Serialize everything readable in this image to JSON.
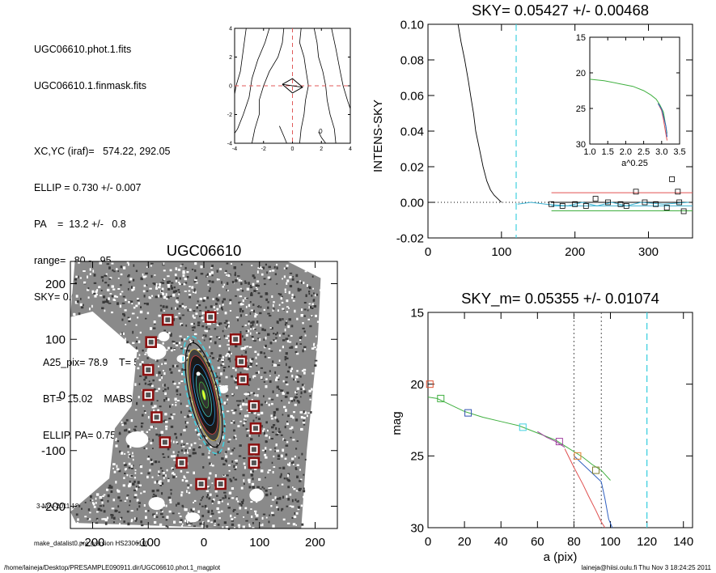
{
  "header_info": {
    "file_phot": "UGC06610.phot.1.fits",
    "file_mask": "UGC06610.1.finmask.fits",
    "xcyc": "XC,YC (iraf)=   574.22, 292.05",
    "ellip": "ELLIP = 0.730 +/- 0.007",
    "pa": "PA    =  13.2 +/-   0.8",
    "range": "range=   80.-   95.",
    "sky": "SKY= 0.05427 +/- 0.00468",
    "a25": "A25_pix= 78.9    T= 5.9  B",
    "bt": "BT=  15.02    MABS=-18.43",
    "ellip_pa": "ELLIP, PA= 0.758    12.0",
    "date": "3-Nov-2011 18:24:25.00",
    "program": "make_datalist0.pro (version HS230610)"
  },
  "footer": {
    "path": "/home/laineja/Desktop/PRESAMPLE090911.dir/UGC06610.phot.1_magplot",
    "user": "laineja@hiisi.oulu.fi  Thu Nov  3 18:24:25 2011"
  },
  "chart_data": [
    {
      "id": "contour",
      "type": "contour",
      "xlim": [
        -4,
        4
      ],
      "ylim": [
        -4,
        4
      ],
      "xticks": [
        "-4",
        "-2",
        "0",
        "2",
        "4"
      ],
      "yticks": [
        "-4",
        "-2",
        "0",
        "2",
        "4"
      ],
      "center": [
        0,
        0
      ],
      "crosshair_color": "#e05a5a"
    },
    {
      "id": "sky",
      "type": "line",
      "title": "SKY= 0.05427 +/- 0.00468",
      "ylabel": "INTENS-SKY",
      "xlim": [
        0,
        360
      ],
      "ylim": [
        -0.02,
        0.1
      ],
      "xticks": [
        "0",
        "100",
        "200",
        "300"
      ],
      "yticks": [
        "-0.02",
        "0.00",
        "0.02",
        "0.04",
        "0.06",
        "0.08",
        "0.10"
      ],
      "profile": [
        [
          41,
          0.1
        ],
        [
          45,
          0.09
        ],
        [
          50,
          0.08
        ],
        [
          55,
          0.068
        ],
        [
          58,
          0.06
        ],
        [
          62,
          0.05
        ],
        [
          65,
          0.04
        ],
        [
          70,
          0.03
        ],
        [
          75,
          0.02
        ],
        [
          80,
          0.012
        ],
        [
          85,
          0.007
        ],
        [
          90,
          0.004
        ],
        [
          95,
          0.002
        ],
        [
          100,
          0.0
        ]
      ],
      "cyan_line": 120,
      "boxes": [
        [
          168,
          -0.001
        ],
        [
          183,
          -0.002
        ],
        [
          200,
          -0.001
        ],
        [
          215,
          -0.002
        ],
        [
          228,
          0.002
        ],
        [
          245,
          0.0
        ],
        [
          262,
          -0.001
        ],
        [
          270,
          -0.002
        ],
        [
          283,
          0.006
        ],
        [
          295,
          0.0
        ],
        [
          310,
          -0.001
        ],
        [
          325,
          -0.003
        ],
        [
          332,
          0.013
        ],
        [
          340,
          0.006
        ],
        [
          342,
          0.0
        ],
        [
          348,
          -0.005
        ]
      ],
      "hlines": [
        {
          "y": 0.0054,
          "color": "#e05050"
        },
        {
          "y": 0.0,
          "color": "#000000"
        },
        {
          "y": -0.002,
          "color": "#3ab0d0"
        },
        {
          "y": -0.0048,
          "color": "#40b040"
        }
      ]
    },
    {
      "id": "sky_inset",
      "type": "line",
      "xlabel": "a^0.25",
      "xlim": [
        1.0,
        3.5
      ],
      "ylim": [
        30,
        15
      ],
      "xticks": [
        "1.0",
        "1.5",
        "2.0",
        "2.5",
        "3.0",
        "3.5"
      ],
      "yticks": [
        "15",
        "20",
        "25",
        "30"
      ],
      "series": [
        {
          "color": "#40b040",
          "x": [
            1.0,
            1.4,
            1.8,
            2.2,
            2.5,
            2.7,
            2.85,
            2.95,
            3.05,
            3.1,
            3.15
          ],
          "y": [
            20.9,
            21.1,
            21.5,
            21.9,
            22.5,
            23.1,
            23.7,
            24.5,
            25.5,
            27.0,
            28.5
          ]
        },
        {
          "color": "#e05050",
          "x": [
            2.9,
            3.0,
            3.05,
            3.1,
            3.15
          ],
          "y": [
            24.3,
            25.3,
            26.5,
            28.0,
            29.5
          ]
        },
        {
          "color": "#3060c0",
          "x": [
            2.9,
            3.0,
            3.06,
            3.12,
            3.15
          ],
          "y": [
            24.3,
            25.1,
            26.3,
            27.5,
            29.0
          ]
        }
      ]
    },
    {
      "id": "image",
      "type": "scatter",
      "title": "UGC06610",
      "xlim": [
        -240,
        240
      ],
      "ylim": [
        -240,
        240
      ],
      "xticks": [
        "-200",
        "-100",
        "0",
        "100",
        "200"
      ],
      "yticks": [
        "-200",
        "-100",
        "0",
        "100",
        "200"
      ],
      "galaxy": {
        "center": [
          0,
          0
        ],
        "a": 80,
        "ellip": 0.73,
        "pa": 13
      },
      "markers": [
        [
          -65,
          135
        ],
        [
          12,
          140
        ],
        [
          -95,
          95
        ],
        [
          57,
          100
        ],
        [
          -100,
          45
        ],
        [
          67,
          60
        ],
        [
          -100,
          0
        ],
        [
          70,
          28
        ],
        [
          -85,
          -40
        ],
        [
          90,
          -20
        ],
        [
          -70,
          -85
        ],
        [
          93,
          -60
        ],
        [
          -40,
          -122
        ],
        [
          90,
          -98
        ],
        [
          -5,
          -160
        ],
        [
          90,
          -122
        ],
        [
          30,
          -160
        ]
      ]
    },
    {
      "id": "mag",
      "type": "line",
      "title": "SKY_m=  0.05355 +/- 0.01074",
      "xlabel": "a (pix)",
      "ylabel": "mag",
      "xlim": [
        0,
        145
      ],
      "ylim": [
        30,
        15
      ],
      "xticks": [
        "0",
        "20",
        "40",
        "60",
        "80",
        "100",
        "120",
        "140"
      ],
      "yticks": [
        "15",
        "20",
        "25",
        "30"
      ],
      "vlines": [
        {
          "x": 80,
          "color": "#555555"
        },
        {
          "x": 95,
          "color": "#555555"
        },
        {
          "x": 120,
          "color": "#40d0e0"
        }
      ],
      "series": [
        {
          "color": "#40b040",
          "x": [
            0,
            5,
            10,
            20,
            30,
            40,
            50,
            60,
            70,
            75,
            80,
            85,
            90,
            95,
            100
          ],
          "y": [
            20.9,
            21.0,
            21.3,
            21.9,
            22.3,
            22.6,
            22.9,
            23.4,
            23.9,
            24.3,
            24.7,
            25.1,
            25.6,
            26.0,
            26.7
          ]
        },
        {
          "color": "#e05050",
          "x": [
            75,
            80,
            85,
            88,
            92,
            95,
            97
          ],
          "y": [
            24.5,
            25.8,
            27.0,
            27.8,
            28.8,
            29.6,
            30.0
          ]
        },
        {
          "color": "#3060c0",
          "x": [
            80,
            85,
            90,
            95,
            97,
            99,
            101
          ],
          "y": [
            25.0,
            25.6,
            26.2,
            26.8,
            28.0,
            29.4,
            30.0
          ]
        },
        {
          "color": "#a040a0",
          "x": [
            60,
            65,
            70,
            75
          ],
          "y": [
            23.3,
            23.7,
            24.0,
            24.4
          ]
        }
      ],
      "boxes": [
        {
          "x": 1,
          "y": 20.0,
          "color": "#e05030"
        },
        {
          "x": 7,
          "y": 21.0,
          "color": "#40b040"
        },
        {
          "x": 22,
          "y": 22.0,
          "color": "#3050b0"
        },
        {
          "x": 52,
          "y": 23.0,
          "color": "#40d0e0"
        },
        {
          "x": 72,
          "y": 24.0,
          "color": "#a040a0"
        },
        {
          "x": 82,
          "y": 25.0,
          "color": "#e08030"
        },
        {
          "x": 92,
          "y": 26.0,
          "color": "#808030"
        }
      ]
    }
  ]
}
